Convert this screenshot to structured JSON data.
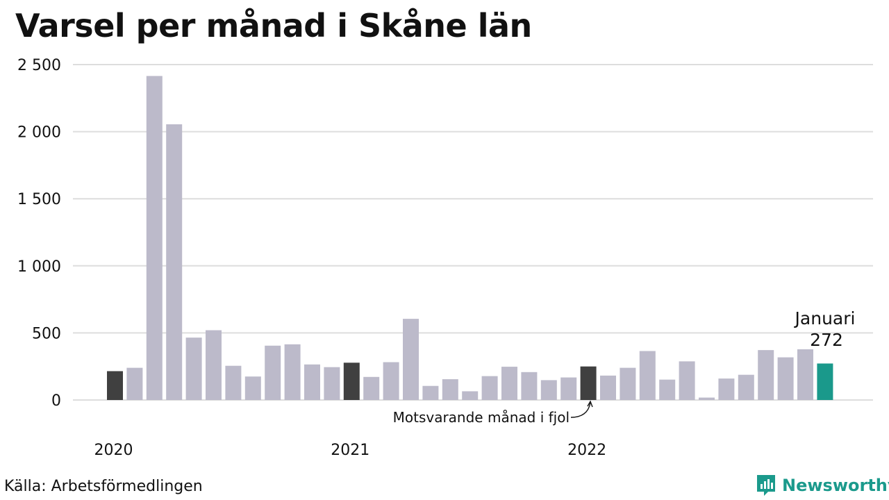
{
  "title": "Varsel per månad i Skåne län",
  "source": "Källa: Arbetsförmedlingen",
  "brand": {
    "name": "Newsworthy",
    "icon": "newsworthy-logo-icon"
  },
  "colors": {
    "default": "#bcbaca",
    "highlight": "#404040",
    "current": "#1a998b",
    "grid": "#dddddd"
  },
  "chart_data": {
    "type": "bar",
    "title": "Varsel per månad i Skåne län",
    "xlabel": "",
    "ylabel": "",
    "ylim": [
      0,
      2500
    ],
    "yticks": [
      0,
      500,
      1000,
      1500,
      2000,
      2500
    ],
    "ytick_labels": [
      "0",
      "500",
      "1 000",
      "1 500",
      "2 000",
      "2 500"
    ],
    "grid": true,
    "year_labels": [
      {
        "label": "2020",
        "index": 0
      },
      {
        "label": "2021",
        "index": 12
      },
      {
        "label": "2022",
        "index": 24
      }
    ],
    "values": [
      215,
      240,
      2415,
      2055,
      465,
      520,
      255,
      175,
      405,
      415,
      265,
      245,
      278,
      172,
      282,
      605,
      105,
      155,
      65,
      178,
      248,
      208,
      148,
      168,
      250,
      182,
      240,
      365,
      152,
      288,
      18,
      160,
      188,
      372,
      318,
      378,
      272
    ],
    "highlight_indices": [
      0,
      12,
      24
    ],
    "current_index": 36,
    "current_label": "Januari",
    "current_value_label": "272",
    "annotation": {
      "text": "Motsvarande månad i fjol",
      "index": 24
    }
  }
}
